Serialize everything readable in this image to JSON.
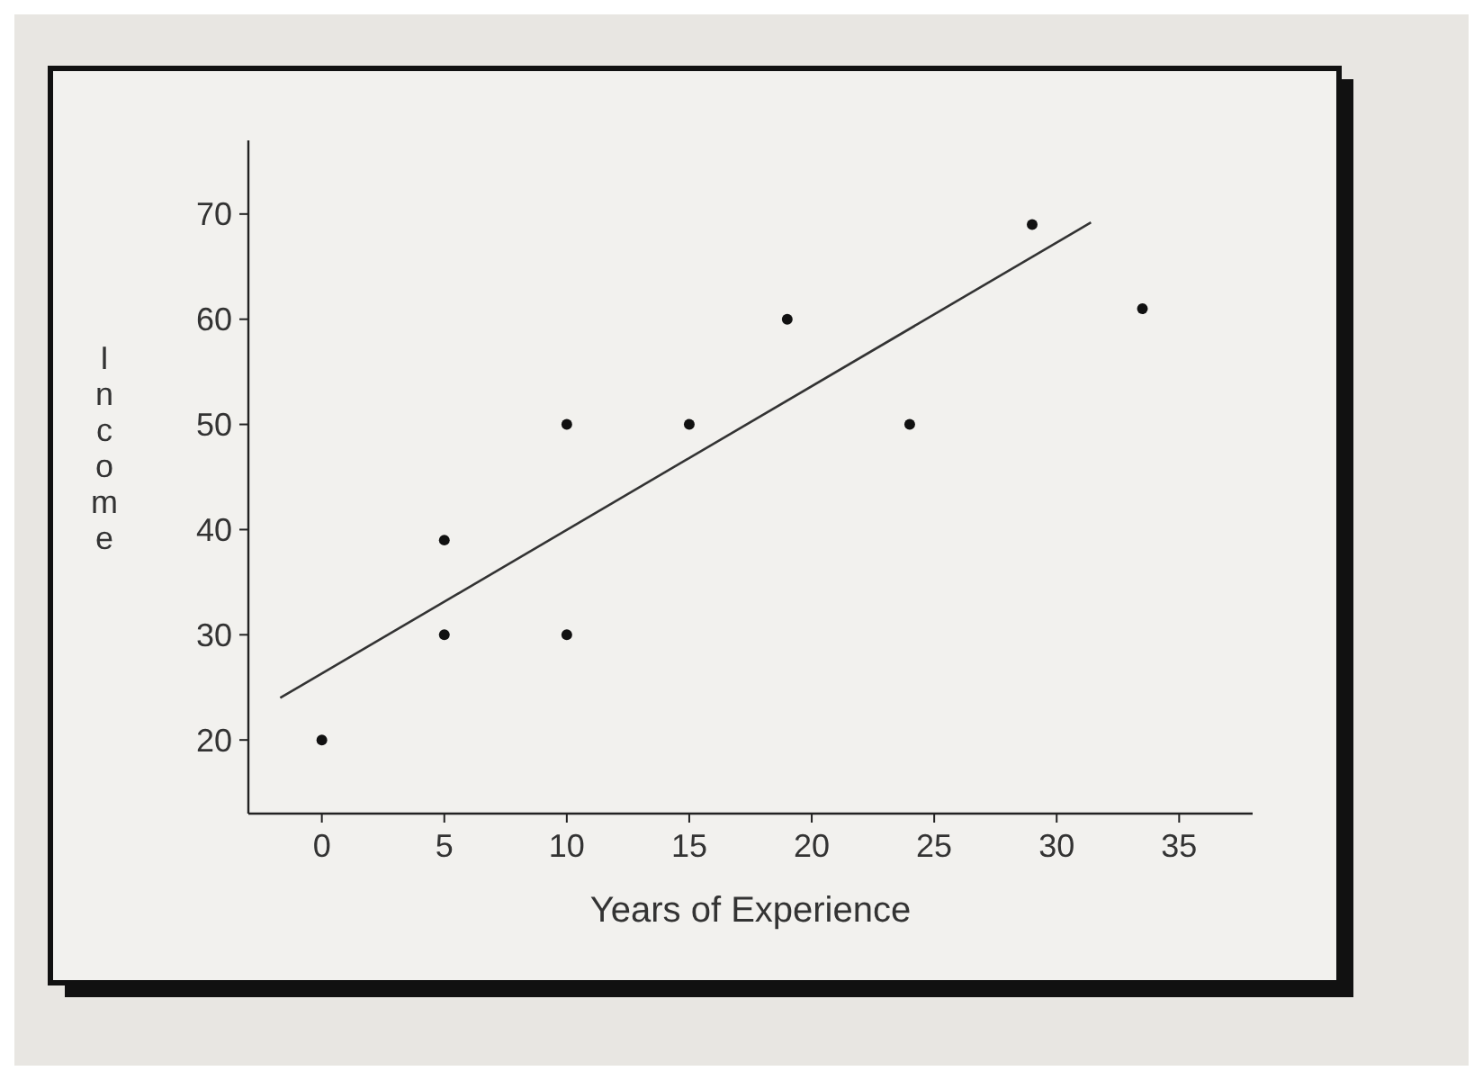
{
  "chart_data": {
    "type": "scatter",
    "xlabel": "Years of Experience",
    "ylabel": "Income",
    "xlim": [
      -3,
      38
    ],
    "ylim": [
      13,
      77
    ],
    "xticks": [
      0,
      5,
      10,
      15,
      20,
      25,
      30,
      35
    ],
    "yticks": [
      20,
      30,
      40,
      50,
      60,
      70
    ],
    "grid": false,
    "series": [
      {
        "color": "#111111",
        "marker": "circle",
        "x": [
          0,
          5,
          5,
          10,
          10,
          15,
          19,
          24,
          29,
          33.5
        ],
        "values": [
          20,
          39,
          30,
          50,
          30,
          50,
          60,
          50,
          69,
          61
        ]
      },
      {
        "type": "line",
        "color": "#333333",
        "x": [
          -1.7,
          31.4
        ],
        "values": [
          24,
          69.2
        ]
      }
    ]
  }
}
